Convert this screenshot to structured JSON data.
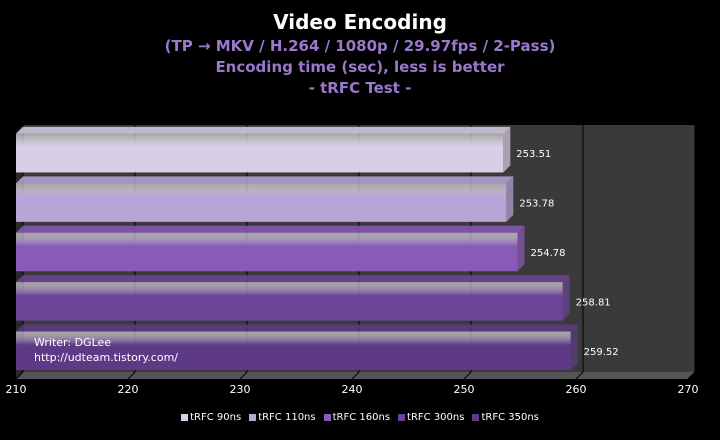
{
  "chart_data": {
    "type": "bar",
    "orientation": "horizontal",
    "title": "Video Encoding",
    "subtitles": [
      "(TP → MKV / H.264 / 1080p / 29.97fps / 2-Pass)",
      "Encoding time (sec), less is better",
      "- tRFC Test -"
    ],
    "xlim": [
      210,
      270
    ],
    "x_ticks": [
      210,
      220,
      230,
      240,
      250,
      260,
      270
    ],
    "grid": true,
    "legend_position": "bottom",
    "series": [
      {
        "name": "tRFC 90ns",
        "value": 253.51,
        "value_label": "253.51",
        "color": "#d8cfe6"
      },
      {
        "name": "tRFC 110ns",
        "value": 253.78,
        "value_label": "253.78",
        "color": "#b8a4d6"
      },
      {
        "name": "tRFC 160ns",
        "value": 254.78,
        "value_label": "254.78",
        "color": "#8a5ab8"
      },
      {
        "name": "tRFC 300ns",
        "value": 258.81,
        "value_label": "258.81",
        "color": "#6e4499"
      },
      {
        "name": "tRFC 350ns",
        "value": 259.52,
        "value_label": "259.52",
        "color": "#5e3a86"
      }
    ],
    "annotations": [
      "Writer: DGLee",
      "http://udteam.tistory.com/"
    ],
    "colors": {
      "plot_background": "#3a3a3a",
      "grid": "#000000",
      "subtitle": "#9a78cc"
    }
  }
}
